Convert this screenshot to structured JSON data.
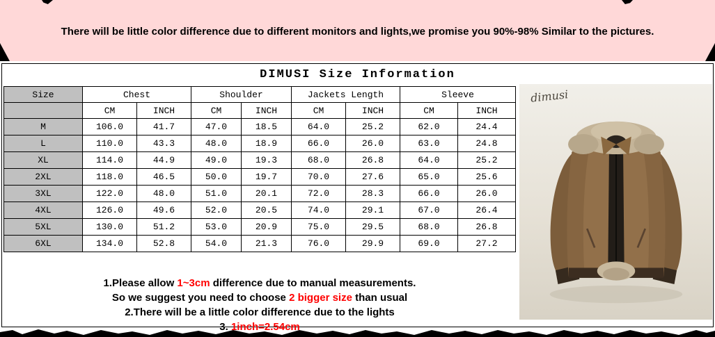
{
  "banner": {
    "text": "There will be little color difference due to different monitors and lights,we promise you 90%-98%  Similar to the pictures."
  },
  "title": "DIMUSI  Size Information",
  "size_table": {
    "headers": {
      "size": "Size",
      "chest": "Chest",
      "shoulder": "Shoulder",
      "jackets_length": "Jackets Length",
      "sleeve": "Sleeve"
    },
    "unit_headers": [
      "CM",
      "INCH"
    ],
    "rows": [
      {
        "size": "M",
        "values": [
          "106.0",
          "41.7",
          "47.0",
          "18.5",
          "64.0",
          "25.2",
          "62.0",
          "24.4"
        ]
      },
      {
        "size": "L",
        "values": [
          "110.0",
          "43.3",
          "48.0",
          "18.9",
          "66.0",
          "26.0",
          "63.0",
          "24.8"
        ]
      },
      {
        "size": "XL",
        "values": [
          "114.0",
          "44.9",
          "49.0",
          "19.3",
          "68.0",
          "26.8",
          "64.0",
          "25.2"
        ]
      },
      {
        "size": "2XL",
        "values": [
          "118.0",
          "46.5",
          "50.0",
          "19.7",
          "70.0",
          "27.6",
          "65.0",
          "25.6"
        ]
      },
      {
        "size": "3XL",
        "values": [
          "122.0",
          "48.0",
          "51.0",
          "20.1",
          "72.0",
          "28.3",
          "66.0",
          "26.0"
        ]
      },
      {
        "size": "4XL",
        "values": [
          "126.0",
          "49.6",
          "52.0",
          "20.5",
          "74.0",
          "29.1",
          "67.0",
          "26.4"
        ]
      },
      {
        "size": "5XL",
        "values": [
          "130.0",
          "51.2",
          "53.0",
          "20.9",
          "75.0",
          "29.5",
          "68.0",
          "26.8"
        ]
      },
      {
        "size": "6XL",
        "values": [
          "134.0",
          "52.8",
          "54.0",
          "21.3",
          "76.0",
          "29.9",
          "69.0",
          "27.2"
        ]
      }
    ]
  },
  "notes": {
    "line1": [
      {
        "text": "1.Please allow "
      },
      {
        "text": "1~3cm",
        "red": true
      },
      {
        "text": " difference due to manual measurements."
      }
    ],
    "line2": [
      {
        "text": "So we suggest you need to choose "
      },
      {
        "text": "2 bigger size",
        "red": true
      },
      {
        "text": " than usual"
      }
    ],
    "line3": [
      {
        "text": "2.There will be a little color difference due to the lights"
      }
    ],
    "line4": [
      {
        "text": "3. "
      },
      {
        "text": "1inch=2.54cm",
        "red": true
      }
    ]
  },
  "product": {
    "brand": "dimusi"
  },
  "colors": {
    "banner_bg": "#ffd8d8",
    "table_gray": "#c0c0c0",
    "accent_red": "#ff0000",
    "jacket_brown": "#92704a",
    "fur": "#c4b498"
  }
}
